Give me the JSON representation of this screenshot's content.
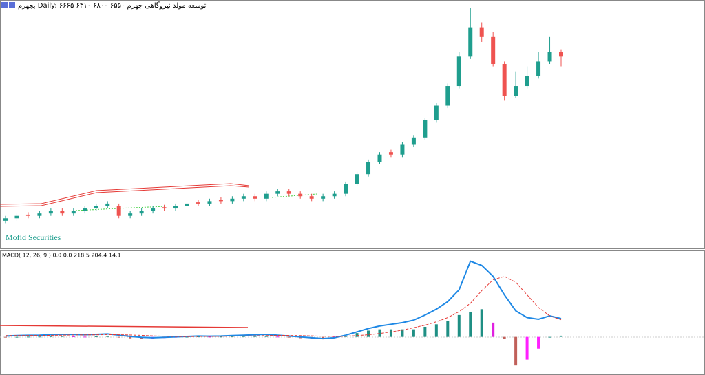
{
  "chart_data": [
    {
      "type": "candlestick",
      "title": "بجهرم Daily: ۶۶۶۵ ۶۳۱۰ ۶۸۰۰ ۶۵۵۰ توسعه مولد نیروگاهی جهرم",
      "annotation": "Mofid Securities",
      "up_color": "#1f9e8e",
      "down_color": "#ef5350",
      "ylim": [
        0,
        100
      ],
      "series": [
        {
          "name": "open",
          "values": [
            11,
            12,
            13.5,
            13,
            14,
            15,
            14,
            15,
            16,
            17,
            17,
            13,
            14,
            15,
            16.5,
            16,
            17,
            18.5,
            18,
            19.5,
            19,
            20,
            21,
            20,
            22,
            23,
            22,
            21,
            20,
            21,
            22,
            26,
            30,
            35,
            39,
            38,
            42,
            45,
            52,
            58,
            66,
            78,
            90,
            86,
            75,
            62,
            66,
            70,
            76,
            80
          ]
        },
        {
          "name": "high",
          "values": [
            13,
            14,
            14.5,
            15,
            16,
            16,
            16,
            17,
            18,
            19,
            18,
            15,
            16,
            17,
            17.5,
            18,
            19,
            19.5,
            20,
            20.5,
            21,
            22,
            22,
            23,
            24,
            24,
            23,
            22,
            22,
            23,
            27,
            31,
            36,
            39,
            40,
            43,
            46,
            53,
            59,
            67,
            80,
            98,
            92,
            88,
            76,
            72,
            74,
            80,
            86,
            81
          ]
        },
        {
          "name": "low",
          "values": [
            10,
            11,
            12,
            12,
            13,
            13,
            13,
            14,
            15,
            16,
            12,
            12,
            13,
            14,
            15,
            15,
            16,
            17,
            17,
            18,
            18,
            19,
            19,
            19,
            21,
            21,
            20,
            19,
            19,
            20,
            21,
            25,
            29,
            34,
            37,
            37,
            41,
            44,
            51,
            57,
            65,
            77,
            84,
            74,
            60,
            61,
            65,
            69,
            75,
            74
          ]
        },
        {
          "name": "close",
          "values": [
            12,
            13,
            13,
            14,
            15,
            14,
            15,
            16,
            17,
            18,
            13,
            14,
            15,
            16,
            16,
            17,
            18,
            18,
            19,
            19,
            20,
            21,
            20,
            22,
            23,
            22,
            21,
            20,
            21,
            22,
            26,
            30,
            35,
            38,
            38,
            42,
            45,
            52,
            58,
            66,
            78,
            90,
            86,
            75,
            62,
            66,
            70,
            76,
            80,
            78
          ]
        }
      ]
    },
    {
      "type": "macd",
      "title": "MACD( 12, 26, 9 ) 0.0 0.0 218.5 204.4 14.1",
      "ylim": [
        -445,
        1012
      ],
      "series": [
        {
          "name": "macd",
          "color": "#1e88e5",
          "values": [
            10,
            15,
            18,
            20,
            25,
            30,
            28,
            25,
            30,
            35,
            20,
            5,
            -5,
            -10,
            -5,
            0,
            5,
            10,
            8,
            10,
            15,
            20,
            25,
            30,
            20,
            10,
            0,
            -10,
            -20,
            -10,
            20,
            60,
            100,
            130,
            150,
            170,
            200,
            260,
            330,
            420,
            560,
            900,
            850,
            720,
            500,
            310,
            230,
            210,
            250,
            218.5
          ]
        },
        {
          "name": "signal",
          "color": "#e53935",
          "values": [
            15,
            15,
            16,
            17,
            18,
            20,
            22,
            23,
            24,
            26,
            25,
            22,
            18,
            12,
            8,
            5,
            4,
            5,
            6,
            7,
            8,
            10,
            12,
            15,
            17,
            17,
            15,
            12,
            8,
            5,
            8,
            15,
            25,
            40,
            60,
            80,
            110,
            140,
            180,
            230,
            300,
            400,
            550,
            680,
            720,
            650,
            500,
            350,
            250,
            204.4
          ]
        },
        {
          "name": "histogram",
          "values": [
            -5,
            0,
            2,
            3,
            7,
            10,
            6,
            2,
            6,
            9,
            -5,
            -17,
            -23,
            -22,
            -13,
            -5,
            1,
            5,
            2,
            3,
            7,
            10,
            13,
            15,
            3,
            -7,
            -15,
            -22,
            -28,
            -15,
            12,
            45,
            75,
            90,
            90,
            90,
            90,
            120,
            150,
            190,
            260,
            300,
            330,
            170,
            -20,
            -340,
            -270,
            -140,
            0,
            14.1
          ]
        }
      ]
    }
  ]
}
